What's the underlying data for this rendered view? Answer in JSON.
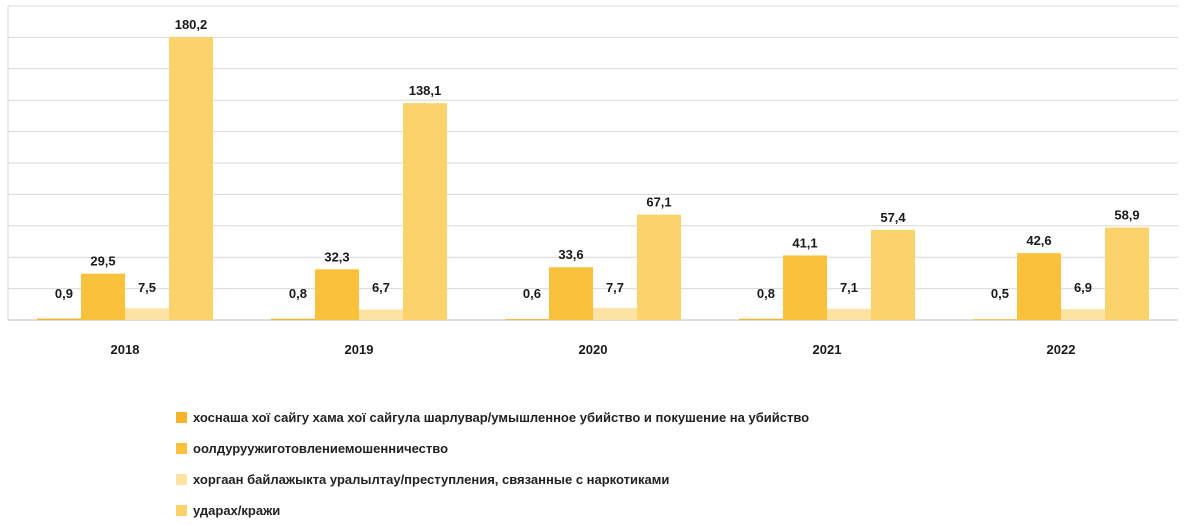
{
  "chart_data": {
    "type": "bar",
    "categories": [
      "2018",
      "2019",
      "2020",
      "2021",
      "2022"
    ],
    "series": [
      {
        "name": "хоснаша хої сайгу хама хої сайгула шарлувар/умышленное убийство и покушение на убийство",
        "values": [
          0.9,
          0.8,
          0.6,
          0.8,
          0.5
        ],
        "labels": [
          "0,9",
          "0,8",
          "0,6",
          "0,8",
          "0,5"
        ],
        "color": "#f5b52a"
      },
      {
        "name": "оолдуруужиготовлениемошенничество",
        "values": [
          29.5,
          32.3,
          33.6,
          41.1,
          42.6
        ],
        "labels": [
          "29,5",
          "32,3",
          "33,6",
          "41,1",
          "42,6"
        ],
        "color": "#f9c23a"
      },
      {
        "name": "хоргаан байлажыкта уралылтау/преступления, связанные с наркотиками",
        "values": [
          7.5,
          6.7,
          7.7,
          7.1,
          6.9
        ],
        "labels": [
          "7,5",
          "6,7",
          "7,7",
          "7,1",
          "6,9"
        ],
        "color": "#fde3a3"
      },
      {
        "name": "ударах/кражи",
        "values": [
          180.2,
          138.1,
          67.1,
          57.4,
          58.9
        ],
        "labels": [
          "180,2",
          "138,1",
          "67,1",
          "57,4",
          "58,9"
        ],
        "color": "#fcd26a"
      }
    ],
    "ylim": [
      0,
      200
    ],
    "grid": true,
    "legend_position": "bottom-left"
  }
}
